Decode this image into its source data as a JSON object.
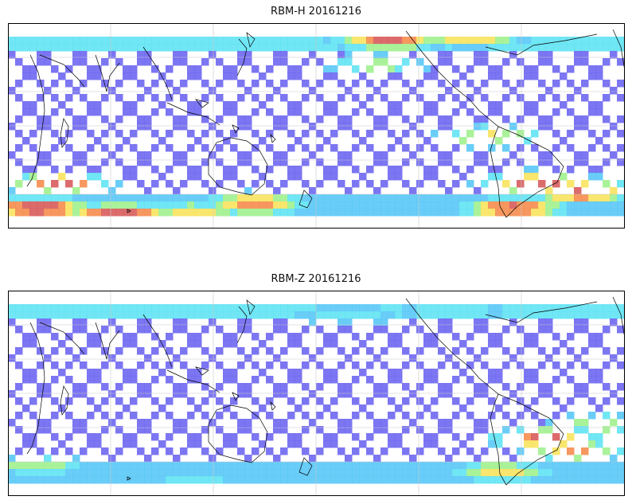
{
  "panels": [
    {
      "title": "RBM-H 20161216",
      "hot_zones": [
        {
          "lon": 0.18,
          "lat": 0.93,
          "strength": 1.0
        },
        {
          "lon": 0.08,
          "lat": 0.78,
          "strength": 0.9
        },
        {
          "lon": 0.4,
          "lat": 0.88,
          "strength": 0.8
        },
        {
          "lon": 0.62,
          "lat": 0.08,
          "strength": 0.9
        },
        {
          "lon": 0.75,
          "lat": 0.05,
          "strength": 1.0
        },
        {
          "lon": 0.6,
          "lat": 0.2,
          "strength": 0.5
        },
        {
          "lon": 0.86,
          "lat": 0.78,
          "strength": 1.0
        },
        {
          "lon": 0.93,
          "lat": 0.82,
          "strength": 1.0
        },
        {
          "lon": 0.82,
          "lat": 0.9,
          "strength": 0.9
        },
        {
          "lon": 0.78,
          "lat": 0.55,
          "strength": 0.6
        },
        {
          "lon": 0.3,
          "lat": 0.92,
          "strength": 0.6
        },
        {
          "lon": 0.05,
          "lat": 0.9,
          "strength": 1.0
        }
      ]
    },
    {
      "title": "RBM-Z 20161216",
      "hot_zones": [
        {
          "lon": 0.87,
          "lat": 0.72,
          "strength": 0.9
        },
        {
          "lon": 0.92,
          "lat": 0.78,
          "strength": 0.7
        },
        {
          "lon": 0.8,
          "lat": 0.88,
          "strength": 0.6
        },
        {
          "lon": 0.05,
          "lat": 0.85,
          "strength": 0.5
        },
        {
          "lon": 0.96,
          "lat": 0.65,
          "strength": 0.5
        },
        {
          "lon": 0.72,
          "lat": 0.1,
          "strength": 0.4
        },
        {
          "lon": 0.55,
          "lat": 0.12,
          "strength": 0.35
        },
        {
          "lon": 0.3,
          "lat": 0.92,
          "strength": 0.3
        }
      ]
    }
  ],
  "colors": {
    "base": "#6a63f0",
    "cool": "#55c6f7",
    "cyan": "#5de3f2",
    "mid": "#9ef08c",
    "warm": "#f8e35a",
    "hot": "#f58a4a",
    "hottest": "#d75858",
    "coast": "#000000",
    "grid": "#c8c8c8"
  }
}
